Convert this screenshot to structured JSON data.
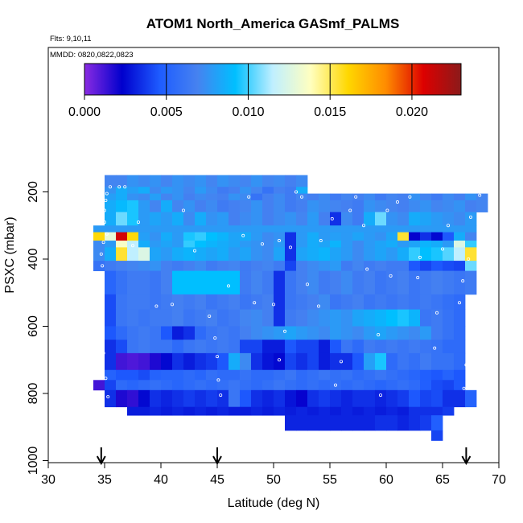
{
  "chart_data": {
    "type": "heatmap",
    "title": "ATOM1 North_America GASmf_PALMS",
    "notes": [
      "Flts: 9,10,11",
      "MMDD: 0820,0822,0823"
    ],
    "xlabel": "Latitude (deg N)",
    "ylabel": "PSXC (mbar)",
    "xlim": [
      30,
      70
    ],
    "ylim": [
      1000,
      0
    ],
    "x_ticks": [
      30,
      35,
      40,
      45,
      50,
      55,
      60,
      65,
      70
    ],
    "y_ticks": [
      200,
      400,
      600,
      800,
      1000
    ],
    "colorbar": {
      "min": 0.0,
      "max": 0.023,
      "ticks": [
        0.0,
        0.005,
        0.01,
        0.015,
        0.02
      ],
      "tick_labels": [
        "0.000",
        "0.005",
        "0.010",
        "0.015",
        "0.020"
      ],
      "colors": [
        "#8a2be2",
        "#0000cd",
        "#1e5cff",
        "#4682f0",
        "#00bfff",
        "#bfefff",
        "#ffffc0",
        "#ffd700",
        "#ff8c00",
        "#dd0000",
        "#8b1a1a"
      ]
    },
    "arrows_latitude": [
      34.7,
      45.0,
      67.1
    ],
    "lat_edges": [
      35,
      36,
      37,
      38,
      39,
      40,
      41,
      42,
      43,
      44,
      45,
      46,
      47,
      48,
      49,
      50,
      51,
      52,
      53,
      54,
      55,
      56,
      57,
      58,
      59,
      60,
      61,
      62,
      63,
      64,
      65,
      66,
      67,
      68,
      69
    ],
    "rows": [
      {
        "p_top": 150,
        "p_bottom": 185,
        "lat_min": 35,
        "lat_max": 53,
        "values": [
          0.007,
          0.007,
          0.0075,
          0.0072,
          0.0075,
          0.007,
          0.0075,
          0.0072,
          0.0075,
          0.007,
          0.0075,
          0.0072,
          0.007,
          0.0075,
          0.007,
          0.0072,
          0.0068,
          0.0072
        ]
      },
      {
        "p_top": 185,
        "p_bottom": 205,
        "lat_min": 35,
        "lat_max": 53,
        "values": [
          0.0075,
          0.0085,
          0.008,
          0.0085,
          0.0072,
          0.0078,
          0.0075,
          0.007,
          0.0078,
          0.0072,
          0.0065,
          0.0068,
          0.0075,
          0.007,
          0.006,
          0.0068,
          0.0065,
          0.0085
        ]
      },
      {
        "p_top": 205,
        "p_bottom": 225,
        "lat_min": 35,
        "lat_max": 69,
        "values": [
          0.008,
          0.0085,
          0.0075,
          0.0072,
          0.008,
          0.007,
          0.0075,
          0.0068,
          0.0072,
          0.007,
          0.0068,
          0.0075,
          0.0072,
          0.006,
          0.0068,
          0.0072,
          0.0065,
          0.007,
          0.0068,
          0.0072,
          0.0065,
          0.007,
          0.0068,
          0.0072,
          0.0065,
          0.007,
          0.0068,
          0.0075,
          0.007,
          0.0065,
          0.0072,
          0.0068,
          0.0075,
          0.007
        ]
      },
      {
        "p_top": 225,
        "p_bottom": 260,
        "lat_min": 35,
        "lat_max": 69,
        "values": [
          0.0085,
          0.009,
          0.0095,
          0.0078,
          0.007,
          0.0085,
          0.007,
          0.0075,
          0.0068,
          0.0072,
          0.0065,
          0.0068,
          0.007,
          0.0075,
          0.0068,
          0.0072,
          0.0065,
          0.0068,
          0.0075,
          0.0072,
          0.007,
          0.0068,
          0.0065,
          0.0075,
          0.0072,
          0.007,
          0.0068,
          0.0072,
          0.0075,
          0.007,
          0.0072,
          0.0075,
          0.0068,
          0.007
        ]
      },
      {
        "p_top": 260,
        "p_bottom": 300,
        "lat_min": 35,
        "lat_max": 68,
        "values": [
          0.0085,
          0.0105,
          0.0095,
          0.0078,
          0.0082,
          0.0078,
          0.0085,
          0.0072,
          0.0085,
          0.0075,
          0.0078,
          0.0068,
          0.0072,
          0.0075,
          0.0068,
          0.0072,
          0.0075,
          0.007,
          0.0078,
          0.0068,
          0.0035,
          0.0072,
          0.0065,
          0.0085,
          0.0105,
          0.0075,
          0.0072,
          0.0085,
          0.0082,
          0.0078,
          0.0075,
          0.0072,
          0.0078
        ]
      },
      {
        "p_top": 300,
        "p_bottom": 320,
        "lat_min": 34,
        "lat_max": 68,
        "values": [
          0.0078,
          0.0078,
          0.0078,
          0.0078,
          0.0078,
          0.0078,
          0.0078,
          0.0078,
          0.0078,
          0.0078,
          0.0078,
          0.0078,
          0.0078,
          0.0078,
          0.0078,
          0.0078,
          0.0078,
          0.0078,
          0.0078,
          0.0078,
          0.0078,
          0.0078,
          0.0078,
          0.0078,
          0.0078,
          0.0078,
          0.0078,
          0.0078,
          0.0078,
          0.0078,
          0.0078,
          0.0078,
          0.0078,
          0.0078
        ]
      },
      {
        "p_top": 320,
        "p_bottom": 345,
        "lat_min": 34,
        "lat_max": 68,
        "values": [
          0.016,
          0.013,
          0.021,
          0.016,
          0.008,
          0.0075,
          0.0085,
          0.0078,
          0.0095,
          0.0098,
          0.0092,
          0.0088,
          0.0082,
          0.0085,
          0.0078,
          0.0072,
          0.0075,
          0.0035,
          0.0078,
          0.0085,
          0.0078,
          0.008,
          0.0078,
          0.0082,
          0.0078,
          0.0075,
          0.0082,
          0.0155,
          0.0022,
          0.0035,
          0.0025,
          0.0045,
          0.0085,
          0.007
        ]
      },
      {
        "p_top": 345,
        "p_bottom": 365,
        "lat_min": 34,
        "lat_max": 68,
        "values": [
          0.0072,
          0.0078,
          0.0135,
          0.0115,
          0.0085,
          0.0078,
          0.0082,
          0.0078,
          0.0098,
          0.0092,
          0.0088,
          0.0085,
          0.0082,
          0.0078,
          0.0075,
          0.0072,
          0.0078,
          0.0035,
          0.0078,
          0.0085,
          0.0082,
          0.0088,
          0.0078,
          0.0072,
          0.0078,
          0.0082,
          0.0085,
          0.0078,
          0.0082,
          0.0088,
          0.0085,
          0.0078,
          0.0125,
          0.0098
        ]
      },
      {
        "p_top": 365,
        "p_bottom": 405,
        "lat_min": 34,
        "lat_max": 68,
        "values": [
          0.0072,
          0.0085,
          0.0155,
          0.0115,
          0.0125,
          0.0082,
          0.0078,
          0.0085,
          0.0088,
          0.0085,
          0.0082,
          0.0085,
          0.0078,
          0.0082,
          0.0075,
          0.0072,
          0.0082,
          0.0035,
          0.0082,
          0.0085,
          0.0088,
          0.0082,
          0.0078,
          0.0072,
          0.0078,
          0.0082,
          0.0078,
          0.0085,
          0.0098,
          0.0092,
          0.0095,
          0.0102,
          0.0115,
          0.0155
        ]
      },
      {
        "p_top": 405,
        "p_bottom": 435,
        "lat_min": 34,
        "lat_max": 68,
        "values": [
          0.006,
          0.0065,
          0.0068,
          0.007,
          0.0072,
          0.0075,
          0.0068,
          0.0065,
          0.0068,
          0.0072,
          0.0065,
          0.0068,
          0.007,
          0.0065,
          0.0068,
          0.007,
          0.0065,
          0.004,
          0.0068,
          0.0072,
          0.0075,
          0.0078,
          0.0065,
          0.007,
          0.0065,
          0.0068,
          0.0065,
          0.0065,
          0.0045,
          0.004,
          0.0045,
          0.0042,
          0.004,
          0.0105
        ]
      },
      {
        "p_top": 435,
        "p_bottom": 505,
        "lat_min": 35,
        "lat_max": 68,
        "values": [
          0.0052,
          0.006,
          0.0065,
          0.0065,
          0.0062,
          0.0068,
          0.0092,
          0.0092,
          0.0092,
          0.0092,
          0.0092,
          0.0092,
          0.0065,
          0.007,
          0.0065,
          0.0035,
          0.0062,
          0.0068,
          0.0072,
          0.0065,
          0.0068,
          0.0072,
          0.0065,
          0.0068,
          0.0062,
          0.0065,
          0.0068,
          0.0062,
          0.0065,
          0.0068,
          0.0065,
          0.0062,
          0.0065
        ]
      },
      {
        "p_top": 505,
        "p_bottom": 550,
        "lat_min": 35,
        "lat_max": 67,
        "values": [
          0.0042,
          0.0062,
          0.0065,
          0.0065,
          0.0062,
          0.0065,
          0.0068,
          0.0065,
          0.0068,
          0.0062,
          0.0065,
          0.0068,
          0.0062,
          0.0065,
          0.0068,
          0.0035,
          0.0062,
          0.0065,
          0.0068,
          0.0072,
          0.0062,
          0.0065,
          0.0068,
          0.0062,
          0.0065,
          0.0062,
          0.0065,
          0.0062,
          0.0065,
          0.0062,
          0.0058,
          0.0055
        ]
      },
      {
        "p_top": 550,
        "p_bottom": 600,
        "lat_min": 35,
        "lat_max": 67,
        "values": [
          0.0042,
          0.0062,
          0.0065,
          0.0062,
          0.0065,
          0.0065,
          0.0068,
          0.0062,
          0.0065,
          0.0068,
          0.0062,
          0.0065,
          0.007,
          0.0072,
          0.0068,
          0.0035,
          0.0065,
          0.0068,
          0.0072,
          0.0075,
          0.0078,
          0.0075,
          0.0082,
          0.0085,
          0.0088,
          0.0092,
          0.0095,
          0.0088,
          0.0062,
          0.0065,
          0.006,
          0.0055
        ]
      },
      {
        "p_top": 600,
        "p_bottom": 640,
        "lat_min": 35,
        "lat_max": 67,
        "values": [
          0.0045,
          0.0055,
          0.0062,
          0.0065,
          0.0062,
          0.0045,
          0.003,
          0.0035,
          0.0055,
          0.0062,
          0.0065,
          0.0062,
          0.0068,
          0.0072,
          0.0075,
          0.0078,
          0.0082,
          0.0078,
          0.0075,
          0.0072,
          0.0078,
          0.0075,
          0.0072,
          0.0078,
          0.0082,
          0.0078,
          0.0075,
          0.0072,
          0.0078,
          0.0065,
          0.006,
          0.0055
        ]
      },
      {
        "p_top": 640,
        "p_bottom": 680,
        "lat_min": 35,
        "lat_max": 67,
        "values": [
          0.0035,
          0.0042,
          0.0062,
          0.0065,
          0.0062,
          0.0062,
          0.0055,
          0.0062,
          0.0065,
          0.0062,
          0.0065,
          0.0062,
          0.004,
          0.004,
          0.003,
          0.003,
          0.0045,
          0.004,
          0.004,
          0.003,
          0.0045,
          0.0062,
          0.0055,
          0.0065,
          0.0062,
          0.0065,
          0.0062,
          0.0065,
          0.0062,
          0.006,
          0.0055,
          0.0055
        ]
      },
      {
        "p_top": 680,
        "p_bottom": 730,
        "lat_min": 35,
        "lat_max": 67,
        "values": [
          0.0035,
          0.0012,
          0.001,
          0.0012,
          0.0018,
          0.0025,
          0.0035,
          0.003,
          0.0035,
          0.0038,
          0.0045,
          0.0085,
          0.0072,
          0.0035,
          0.0028,
          0.0025,
          0.004,
          0.0035,
          0.004,
          0.003,
          0.0035,
          0.0035,
          0.0045,
          0.008,
          0.0095,
          0.0055,
          0.0062,
          0.0058,
          0.0065,
          0.006,
          0.006,
          0.0055
        ]
      },
      {
        "p_top": 730,
        "p_bottom": 760,
        "lat_min": 35,
        "lat_max": 67,
        "values": [
          0.005,
          0.0045,
          0.0045,
          0.0042,
          0.005,
          0.0052,
          0.0052,
          0.0055,
          0.0052,
          0.0058,
          0.0055,
          0.0055,
          0.006,
          0.0055,
          0.0055,
          0.0058,
          0.0062,
          0.0055,
          0.0058,
          0.0062,
          0.0058,
          0.006,
          0.0055,
          0.0058,
          0.0062,
          0.0058,
          0.0055,
          0.0052,
          0.0048,
          0.0045,
          0.005,
          0.0045
        ]
      },
      {
        "p_top": 760,
        "p_bottom": 790,
        "lat_min": 34,
        "lat_max": 67,
        "values": [
          0.0012,
          0.004,
          0.0055,
          0.0052,
          0.0055,
          0.0058,
          0.0055,
          0.0052,
          0.0055,
          0.0058,
          0.0055,
          0.0058,
          0.0062,
          0.0058,
          0.0055,
          0.0058,
          0.0062,
          0.0058,
          0.0055,
          0.0058,
          0.0055,
          0.0058,
          0.0055,
          0.0058,
          0.0055,
          0.0052,
          0.0055,
          0.0058,
          0.0055,
          0.0048,
          0.0042,
          0.004,
          0.0045
        ]
      },
      {
        "p_top": 790,
        "p_bottom": 840,
        "lat_min": 35,
        "lat_max": 68,
        "values": [
          0.0035,
          0.0018,
          0.0015,
          0.0025,
          0.0035,
          0.0032,
          0.0035,
          0.0038,
          0.0035,
          0.0038,
          0.0035,
          0.0062,
          0.0045,
          0.0035,
          0.0032,
          0.0035,
          0.0028,
          0.0022,
          0.0035,
          0.0038,
          0.0035,
          0.0032,
          0.0035,
          0.0035,
          0.0032,
          0.0035,
          0.0038,
          0.0045,
          0.004,
          0.0042,
          0.0035,
          0.0035,
          0.005
        ]
      },
      {
        "p_top": 840,
        "p_bottom": 865,
        "lat_min": 37,
        "lat_max": 66,
        "values": [
          0.003,
          0.003,
          0.0032,
          0.003,
          0.0032,
          0.003,
          0.0032,
          0.003,
          0.0032,
          0.003,
          0.003,
          0.0032,
          0.003,
          0.0032,
          0.003,
          0.0032,
          0.003,
          0.0032,
          0.003,
          0.0032,
          0.003,
          0.0032,
          0.003,
          0.0032,
          0.003,
          0.0035,
          0.0035,
          0.0035,
          0.0038
        ]
      },
      {
        "p_top": 865,
        "p_bottom": 910,
        "lat_min": 51,
        "lat_max": 65,
        "values": [
          0.0032,
          0.0032,
          0.0032,
          0.0032,
          0.0032,
          0.0032,
          0.0032,
          0.0032,
          0.0035,
          0.0035,
          0.0032,
          0.0035,
          0.0038,
          0.0048
        ]
      },
      {
        "p_top": 910,
        "p_bottom": 940,
        "lat_min": 64,
        "lat_max": 65,
        "values": [
          0.004
        ]
      }
    ],
    "points": [
      {
        "lat": 35.5,
        "p": 185
      },
      {
        "lat": 36.3,
        "p": 185
      },
      {
        "lat": 36.8,
        "p": 185
      },
      {
        "lat": 35.2,
        "p": 205
      },
      {
        "lat": 35.1,
        "p": 225
      },
      {
        "lat": 35.0,
        "p": 255
      },
      {
        "lat": 35.0,
        "p": 290
      },
      {
        "lat": 35.2,
        "p": 325
      },
      {
        "lat": 34.9,
        "p": 350
      },
      {
        "lat": 34.7,
        "p": 385
      },
      {
        "lat": 34.8,
        "p": 420
      },
      {
        "lat": 34.6,
        "p": 470
      },
      {
        "lat": 34.7,
        "p": 535
      },
      {
        "lat": 34.6,
        "p": 590
      },
      {
        "lat": 34.7,
        "p": 630
      },
      {
        "lat": 34.9,
        "p": 680
      },
      {
        "lat": 34.8,
        "p": 720
      },
      {
        "lat": 35.1,
        "p": 755
      },
      {
        "lat": 35.3,
        "p": 810
      },
      {
        "lat": 37.5,
        "p": 360
      },
      {
        "lat": 38.0,
        "p": 290
      },
      {
        "lat": 39.6,
        "p": 540
      },
      {
        "lat": 41.0,
        "p": 535
      },
      {
        "lat": 42.0,
        "p": 255
      },
      {
        "lat": 43.0,
        "p": 375
      },
      {
        "lat": 44.3,
        "p": 570
      },
      {
        "lat": 44.8,
        "p": 635
      },
      {
        "lat": 45.0,
        "p": 690
      },
      {
        "lat": 45.1,
        "p": 760
      },
      {
        "lat": 45.3,
        "p": 805
      },
      {
        "lat": 46.0,
        "p": 480
      },
      {
        "lat": 47.3,
        "p": 330
      },
      {
        "lat": 47.8,
        "p": 215
      },
      {
        "lat": 48.3,
        "p": 530
      },
      {
        "lat": 49.0,
        "p": 355
      },
      {
        "lat": 50.0,
        "p": 535
      },
      {
        "lat": 50.5,
        "p": 345
      },
      {
        "lat": 50.5,
        "p": 700
      },
      {
        "lat": 51.0,
        "p": 615
      },
      {
        "lat": 51.5,
        "p": 365
      },
      {
        "lat": 52.0,
        "p": 200
      },
      {
        "lat": 52.5,
        "p": 215
      },
      {
        "lat": 53.0,
        "p": 475
      },
      {
        "lat": 54.0,
        "p": 540
      },
      {
        "lat": 54.2,
        "p": 345
      },
      {
        "lat": 55.2,
        "p": 280
      },
      {
        "lat": 55.5,
        "p": 775
      },
      {
        "lat": 56.0,
        "p": 705
      },
      {
        "lat": 56.8,
        "p": 255
      },
      {
        "lat": 57.3,
        "p": 215
      },
      {
        "lat": 58.0,
        "p": 300
      },
      {
        "lat": 58.3,
        "p": 430
      },
      {
        "lat": 59.3,
        "p": 625
      },
      {
        "lat": 59.5,
        "p": 805
      },
      {
        "lat": 60.1,
        "p": 255
      },
      {
        "lat": 60.4,
        "p": 450
      },
      {
        "lat": 61.0,
        "p": 230
      },
      {
        "lat": 62.1,
        "p": 215
      },
      {
        "lat": 62.8,
        "p": 455
      },
      {
        "lat": 63.0,
        "p": 395
      },
      {
        "lat": 64.3,
        "p": 665
      },
      {
        "lat": 64.5,
        "p": 560
      },
      {
        "lat": 65.0,
        "p": 370
      },
      {
        "lat": 65.5,
        "p": 300
      },
      {
        "lat": 66.5,
        "p": 530
      },
      {
        "lat": 66.8,
        "p": 465
      },
      {
        "lat": 66.9,
        "p": 785
      },
      {
        "lat": 67.1,
        "p": 715
      },
      {
        "lat": 67.3,
        "p": 400
      },
      {
        "lat": 67.5,
        "p": 275
      },
      {
        "lat": 68.3,
        "p": 210
      },
      {
        "lat": 69.0,
        "p": 200
      }
    ]
  }
}
